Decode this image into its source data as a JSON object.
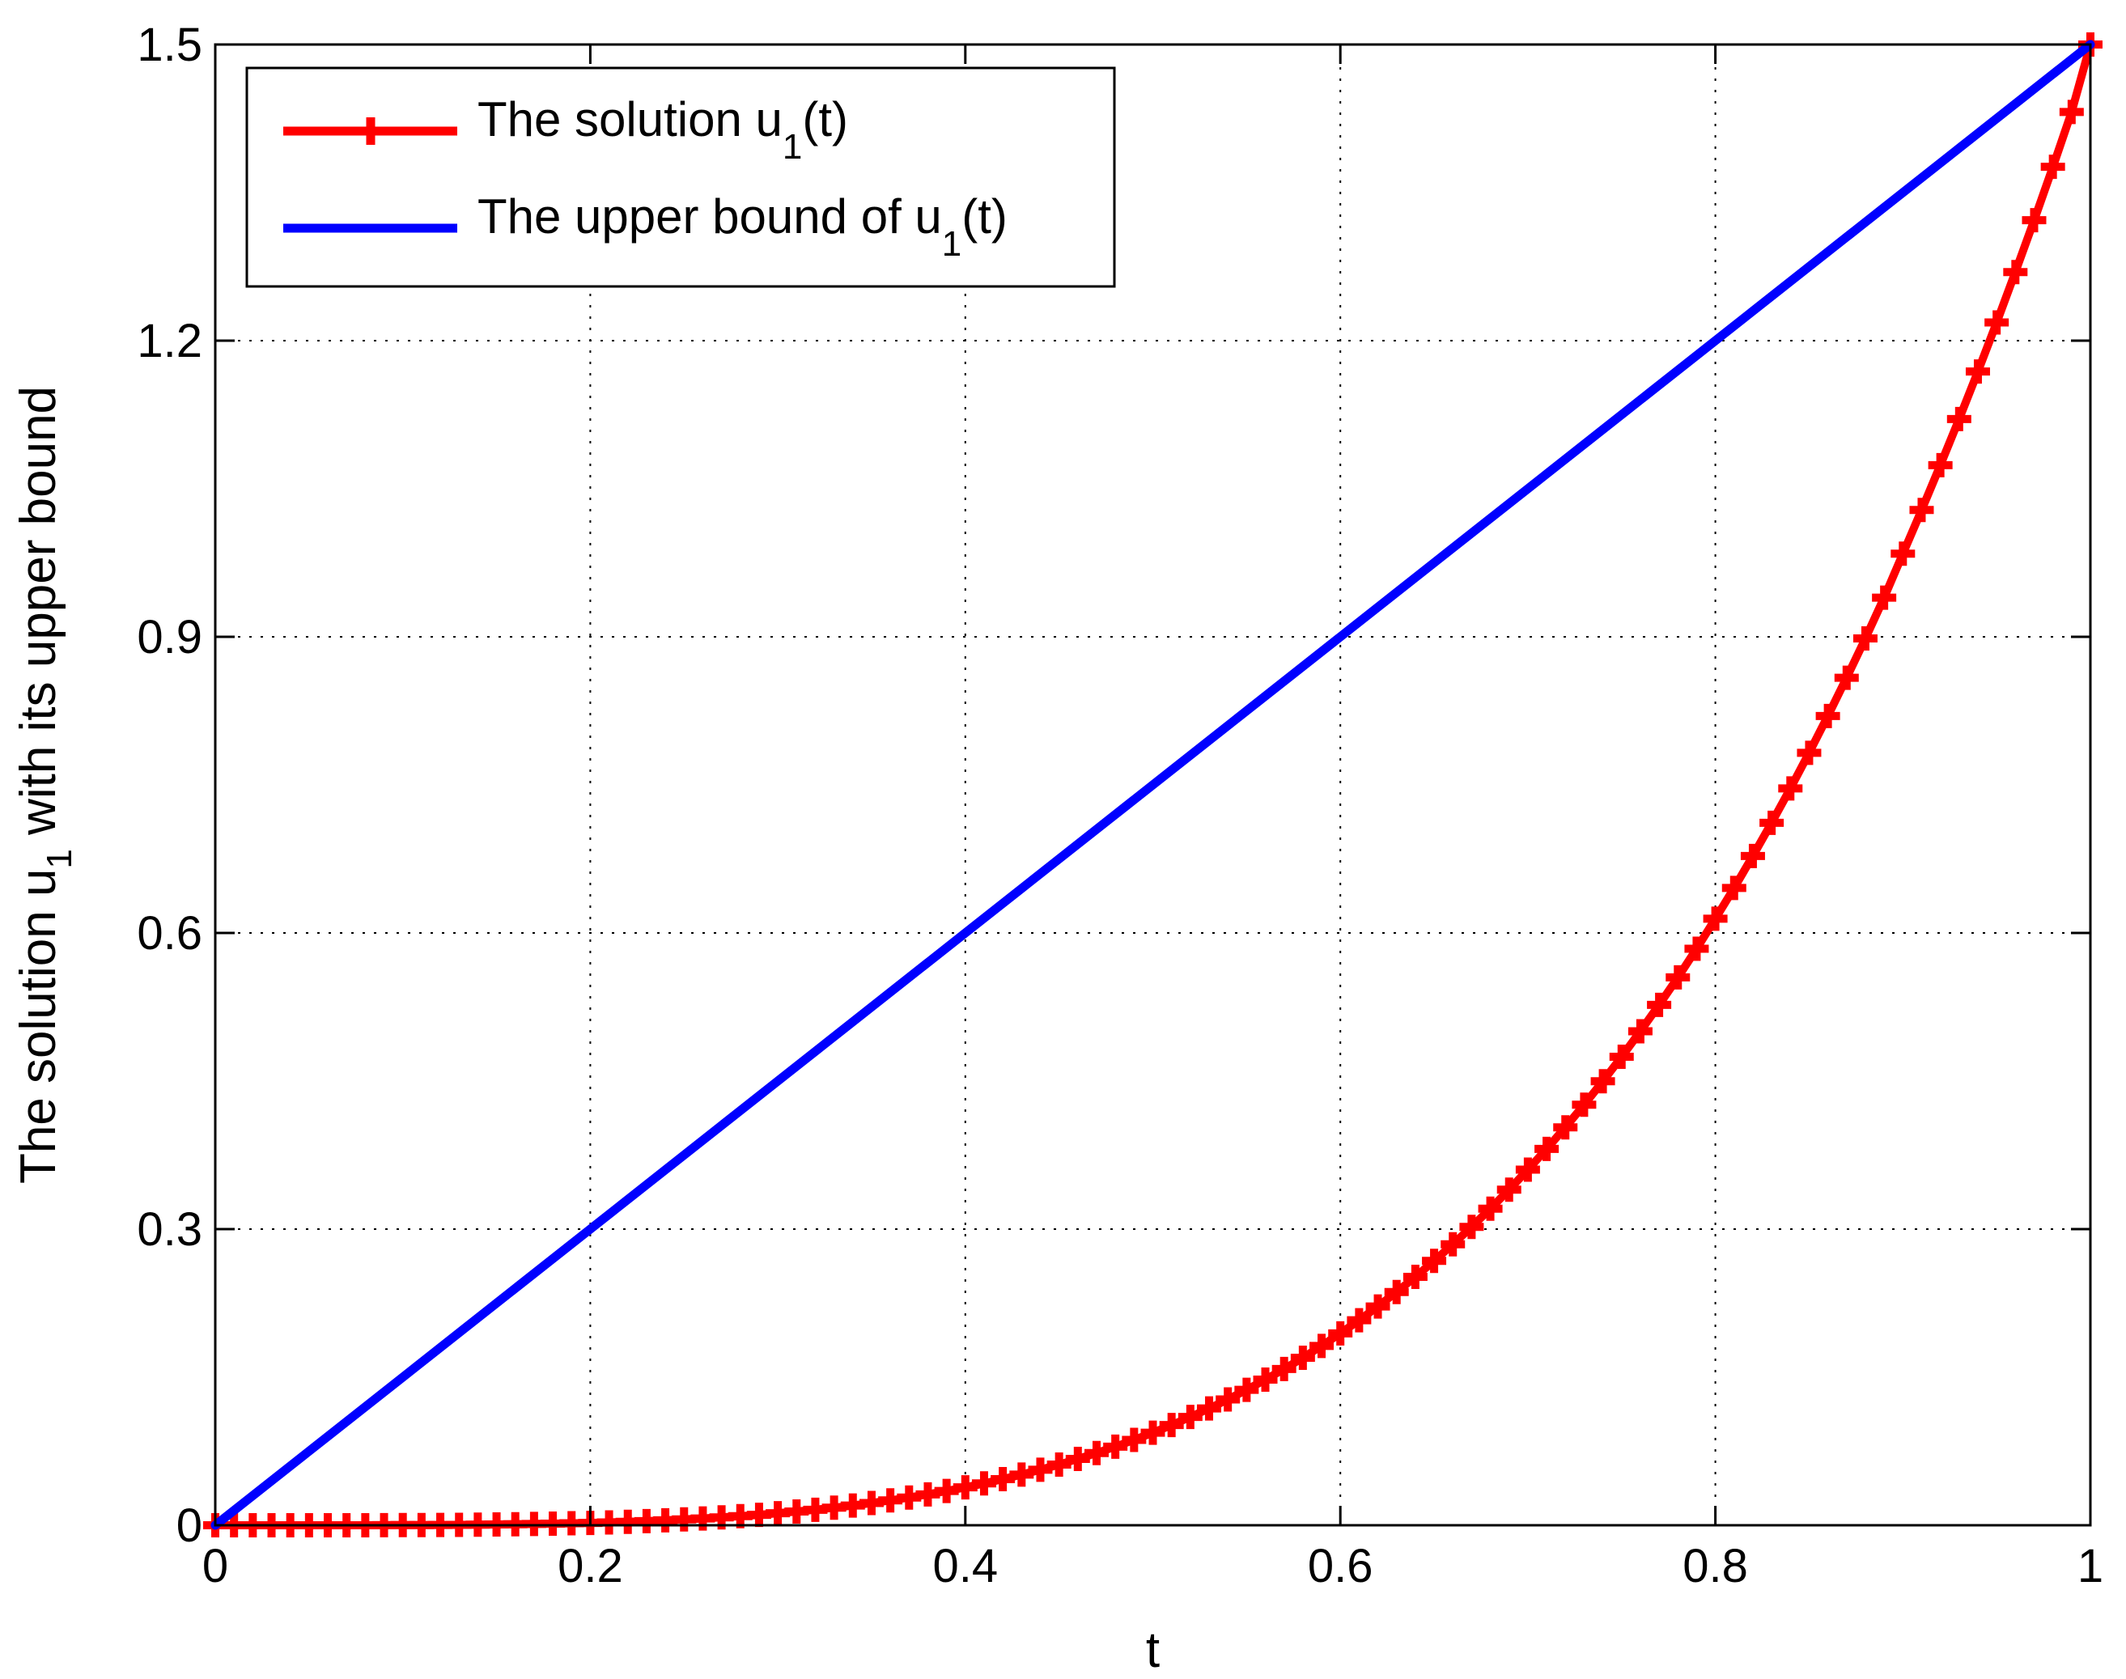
{
  "chart_data": {
    "type": "line",
    "xlabel": "t",
    "ylabel": {
      "prefix": "The solution u",
      "sub": "1",
      "suffix": " with its upper bound"
    },
    "xlim": [
      0,
      1
    ],
    "ylim": [
      0,
      1.5
    ],
    "xticks": [
      0,
      0.2,
      0.4,
      0.6,
      0.8,
      1
    ],
    "xtick_labels": [
      "0",
      "0.2",
      "0.4",
      "0.6",
      "0.8",
      "1"
    ],
    "yticks": [
      0,
      0.3,
      0.6,
      0.9,
      1.2,
      1.5
    ],
    "ytick_labels": [
      "0",
      "0.3",
      "0.6",
      "0.9",
      "1.2",
      "1.5"
    ],
    "grid": true,
    "legend_position": "top-left",
    "series": [
      {
        "name": {
          "prefix": "The solution u",
          "sub": "1",
          "suffix": "(t)"
        },
        "color": "#ff0000",
        "marker": "plus",
        "x": [
          0,
          0.01,
          0.02,
          0.03,
          0.04,
          0.05,
          0.06,
          0.07,
          0.08,
          0.09,
          0.1,
          0.11,
          0.12,
          0.13,
          0.14,
          0.15,
          0.16,
          0.17,
          0.18,
          0.19,
          0.2,
          0.21,
          0.22,
          0.23,
          0.24,
          0.25,
          0.26,
          0.27,
          0.28,
          0.29,
          0.3,
          0.31,
          0.32,
          0.33,
          0.34,
          0.35,
          0.36,
          0.37,
          0.38,
          0.39,
          0.4,
          0.41,
          0.42,
          0.43,
          0.44,
          0.45,
          0.46,
          0.47,
          0.48,
          0.49,
          0.5,
          0.51,
          0.52,
          0.53,
          0.54,
          0.55,
          0.56,
          0.57,
          0.58,
          0.59,
          0.6,
          0.61,
          0.62,
          0.63,
          0.64,
          0.65,
          0.66,
          0.67,
          0.68,
          0.69,
          0.7,
          0.71,
          0.72,
          0.73,
          0.74,
          0.75,
          0.76,
          0.77,
          0.78,
          0.79,
          0.8,
          0.81,
          0.82,
          0.83,
          0.84,
          0.85,
          0.86,
          0.87,
          0.88,
          0.89,
          0.9,
          0.91,
          0.92,
          0.93,
          0.94,
          0.95,
          0.96,
          0.97,
          0.98,
          0.99,
          1
        ],
        "y": [
          0,
          0,
          0,
          0,
          0,
          0,
          0,
          0,
          0,
          0.0001,
          0.0002,
          0.0002,
          0.0003,
          0.0004,
          0.0006,
          0.0008,
          0.001,
          0.0013,
          0.0016,
          0.002,
          0.0024,
          0.0029,
          0.0035,
          0.0042,
          0.005,
          0.0059,
          0.0069,
          0.008,
          0.0092,
          0.0106,
          0.0122,
          0.0139,
          0.0157,
          0.0178,
          0.02,
          0.0225,
          0.0252,
          0.0281,
          0.0313,
          0.0347,
          0.0384,
          0.0424,
          0.0467,
          0.0513,
          0.0562,
          0.0615,
          0.0672,
          0.0732,
          0.0796,
          0.0865,
          0.0938,
          0.1015,
          0.1097,
          0.1183,
          0.1275,
          0.1372,
          0.1475,
          0.1583,
          0.1697,
          0.1817,
          0.1944,
          0.2077,
          0.2216,
          0.2363,
          0.2516,
          0.2678,
          0.2846,
          0.3023,
          0.3207,
          0.34,
          0.3602,
          0.3812,
          0.4031,
          0.426,
          0.4498,
          0.4746,
          0.5004,
          0.5272,
          0.555,
          0.584,
          0.6144,
          0.6456,
          0.678,
          0.7116,
          0.7464,
          0.7825,
          0.8198,
          0.8585,
          0.8984,
          0.9397,
          0.9842,
          1.0285,
          1.0739,
          1.1206,
          1.1687,
          1.2184,
          1.2695,
          1.322,
          1.3761,
          1.4317,
          1.5
        ]
      },
      {
        "name": {
          "prefix": "The upper bound of u",
          "sub": "1",
          "suffix": "(t)"
        },
        "color": "#0000ff",
        "marker": "none",
        "x": [
          0,
          1
        ],
        "y": [
          0,
          1.5
        ]
      }
    ]
  }
}
